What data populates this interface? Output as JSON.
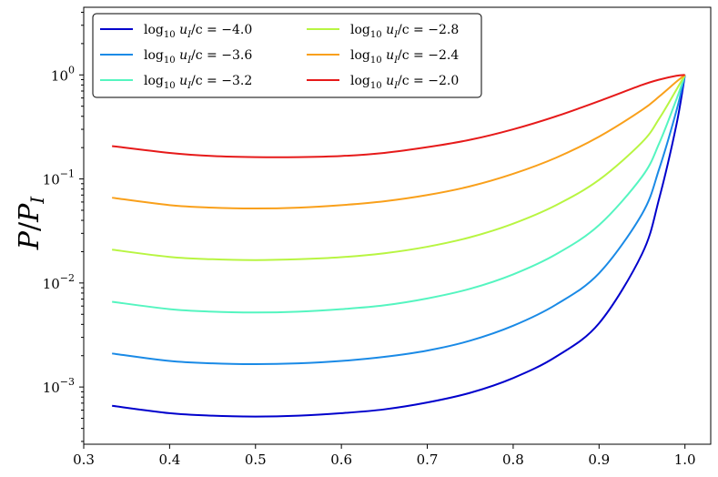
{
  "chart_data": {
    "type": "line",
    "title": "",
    "xlabel": "",
    "ylabel": "P/P_I",
    "xlim": [
      0.3,
      1.03
    ],
    "ylim_log10": [
      -3.55,
      0.65
    ],
    "yscale": "log",
    "x_ticks": [
      "0.3",
      "0.4",
      "0.5",
      "0.6",
      "0.7",
      "0.8",
      "0.9",
      "1.0"
    ],
    "y_ticks": [
      {
        "base": "10",
        "exp": "−3"
      },
      {
        "base": "10",
        "exp": "−2"
      },
      {
        "base": "10",
        "exp": "−1"
      },
      {
        "base": "10",
        "exp": "0"
      }
    ],
    "grid": false,
    "legend_position": "top-left",
    "x": [
      0.333,
      0.4,
      0.45,
      0.5,
      0.55,
      0.6,
      0.65,
      0.7,
      0.75,
      0.8,
      0.85,
      0.9,
      0.95,
      0.97,
      0.99,
      1.0
    ],
    "series": [
      {
        "name": "log10 uI/c = −4.0",
        "color": "#0000cc",
        "values": [
          0.00066,
          0.00056,
          0.00053,
          0.00052,
          0.00053,
          0.00056,
          0.00061,
          0.00071,
          0.00088,
          0.00122,
          0.00196,
          0.0041,
          0.019,
          0.065,
          0.33,
          1.0
        ]
      },
      {
        "name": "log10 uI/c = −3.6",
        "color": "#1a8ae6",
        "values": [
          0.0021,
          0.00178,
          0.00169,
          0.00166,
          0.00169,
          0.00178,
          0.00195,
          0.00224,
          0.00279,
          0.00388,
          0.0062,
          0.0124,
          0.046,
          0.125,
          0.45,
          1.0
        ]
      },
      {
        "name": "log10 uI/c = −3.2",
        "color": "#55f5c0",
        "values": [
          0.0066,
          0.0056,
          0.0053,
          0.0052,
          0.0053,
          0.0056,
          0.0061,
          0.0071,
          0.0088,
          0.0121,
          0.0189,
          0.036,
          0.105,
          0.22,
          0.58,
          1.0
        ]
      },
      {
        "name": "log10 uI/c = −2.8",
        "color": "#b8f542",
        "values": [
          0.0209,
          0.0178,
          0.0169,
          0.0166,
          0.0169,
          0.0177,
          0.0193,
          0.0223,
          0.0275,
          0.0372,
          0.056,
          0.098,
          0.225,
          0.38,
          0.72,
          1.0
        ]
      },
      {
        "name": "log10 uI/c = −2.4",
        "color": "#f9a01b",
        "values": [
          0.066,
          0.056,
          0.053,
          0.052,
          0.053,
          0.056,
          0.061,
          0.07,
          0.085,
          0.112,
          0.16,
          0.255,
          0.46,
          0.62,
          0.86,
          1.0
        ]
      },
      {
        "name": "log10 uI/c = −2.0",
        "color": "#e61a1a",
        "values": [
          0.207,
          0.178,
          0.166,
          0.162,
          0.162,
          0.166,
          0.178,
          0.202,
          0.238,
          0.3,
          0.4,
          0.56,
          0.8,
          0.9,
          0.98,
          1.0
        ]
      }
    ],
    "legend": [
      {
        "prefix": "log",
        "sub": "10",
        "var": "u",
        "varsub": "I",
        "rest": "/c = −4.0"
      },
      {
        "prefix": "log",
        "sub": "10",
        "var": "u",
        "varsub": "I",
        "rest": "/c = −3.6"
      },
      {
        "prefix": "log",
        "sub": "10",
        "var": "u",
        "varsub": "I",
        "rest": "/c = −3.2"
      },
      {
        "prefix": "log",
        "sub": "10",
        "var": "u",
        "varsub": "I",
        "rest": "/c = −2.8"
      },
      {
        "prefix": "log",
        "sub": "10",
        "var": "u",
        "varsub": "I",
        "rest": "/c = −2.4"
      },
      {
        "prefix": "log",
        "sub": "10",
        "var": "u",
        "varsub": "I",
        "rest": "/c = −2.0"
      }
    ]
  }
}
